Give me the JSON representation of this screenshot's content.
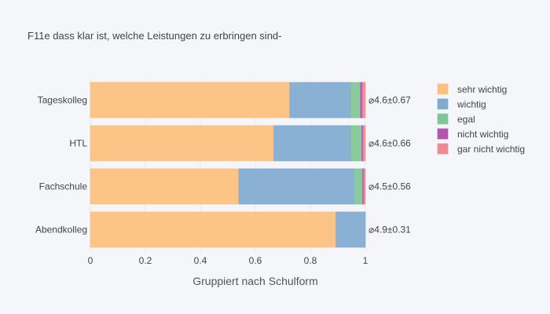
{
  "chart_data": {
    "type": "bar",
    "orientation": "horizontal",
    "stacked": true,
    "title": "F11e dass klar ist, welche Leistungen zu erbringen sind-",
    "xlabel": "Gruppiert nach Schulform",
    "ylabel": "",
    "xlim": [
      0,
      1.2
    ],
    "xticks": [
      0,
      0.2,
      0.4,
      0.6,
      0.8,
      1
    ],
    "grid": true,
    "legend_position": "right",
    "categories": [
      "Tageskolleg",
      "HTL",
      "Fachschule",
      "Abendkolleg"
    ],
    "series": [
      {
        "name": "sehr wichtig",
        "color": "#fdbf7e",
        "values": [
          0.725,
          0.667,
          0.54,
          0.893
        ]
      },
      {
        "name": "wichtig",
        "color": "#80aacf",
        "values": [
          0.222,
          0.28,
          0.42,
          0.107
        ]
      },
      {
        "name": "egal",
        "color": "#7fc796",
        "values": [
          0.035,
          0.04,
          0.03,
          0.0
        ]
      },
      {
        "name": "nicht wichtig",
        "color": "#b156b0",
        "values": [
          0.008,
          0.005,
          0.005,
          0.0
        ]
      },
      {
        "name": "gar nicht wichtig",
        "color": "#f08a90",
        "values": [
          0.01,
          0.008,
          0.005,
          0.0
        ]
      }
    ],
    "annotations": [
      "⌀4.6±0.67",
      "⌀4.6±0.66",
      "⌀4.5±0.56",
      "⌀4.9±0.31"
    ]
  }
}
